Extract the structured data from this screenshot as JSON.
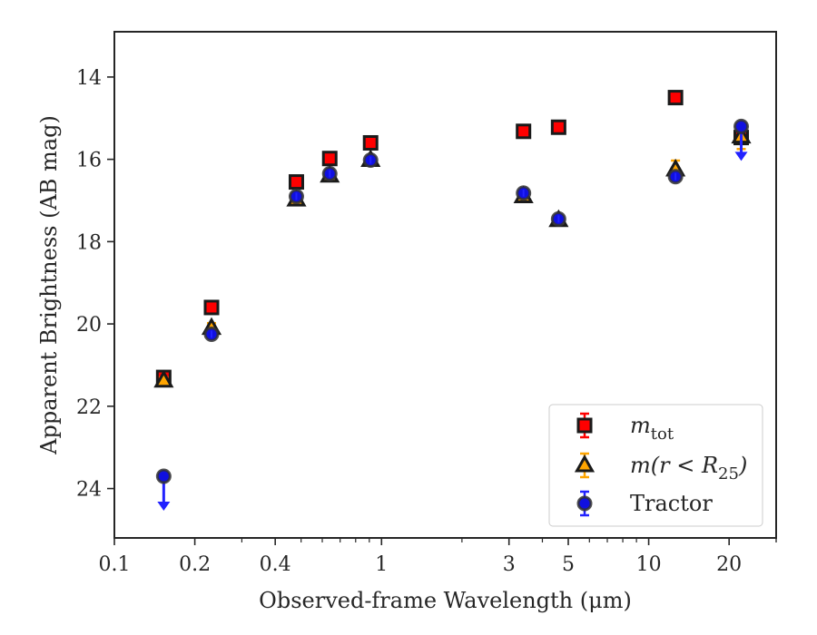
{
  "chart_data": {
    "type": "scatter",
    "xlabel": "Observed-frame Wavelength (μm)",
    "ylabel": "Apparent Brightness (AB mag)",
    "xscale": "log",
    "xlim": [
      0.1,
      30
    ],
    "ylim": [
      25.2,
      12.9
    ],
    "y_inverted": true,
    "grid": false,
    "x_ticks": [
      {
        "value": 0.1,
        "label": "0.1"
      },
      {
        "value": 0.2,
        "label": "0.2"
      },
      {
        "value": 0.4,
        "label": "0.4"
      },
      {
        "value": 1,
        "label": "1"
      },
      {
        "value": 3,
        "label": "3"
      },
      {
        "value": 5,
        "label": "5"
      },
      {
        "value": 10,
        "label": "10"
      },
      {
        "value": 20,
        "label": "20"
      }
    ],
    "y_ticks": [
      {
        "value": 14,
        "label": "14"
      },
      {
        "value": 16,
        "label": "16"
      },
      {
        "value": 18,
        "label": "18"
      },
      {
        "value": 20,
        "label": "20"
      },
      {
        "value": 22,
        "label": "22"
      },
      {
        "value": 24,
        "label": "24"
      }
    ],
    "legend": {
      "position": "lower-right",
      "entries": [
        {
          "series": "mtot"
        },
        {
          "series": "mr25"
        },
        {
          "series": "tractor"
        }
      ]
    },
    "series": [
      {
        "id": "mtot",
        "name_main": "m",
        "name_sub": "tot",
        "marker": "square",
        "face_color": "#ff0000",
        "edge_color": "#1a1a1a",
        "error_color": "#ff0000",
        "points": [
          {
            "x": 0.153,
            "y": 21.3,
            "err": 0.12
          },
          {
            "x": 0.231,
            "y": 19.6,
            "err": 0.05
          },
          {
            "x": 0.48,
            "y": 16.55,
            "err": 0.05
          },
          {
            "x": 0.64,
            "y": 15.98,
            "err": 0.05
          },
          {
            "x": 0.91,
            "y": 15.6,
            "err": 0.05
          },
          {
            "x": 3.4,
            "y": 15.32,
            "err": 0.05
          },
          {
            "x": 4.6,
            "y": 15.22,
            "err": 0.05
          },
          {
            "x": 12.6,
            "y": 14.5,
            "err": 0.05
          },
          {
            "x": 22.2,
            "y": 15.47,
            "err": 0.05
          }
        ]
      },
      {
        "id": "mr25",
        "name_main": "m(r < R",
        "name_sub": "25",
        "name_tail": ")",
        "marker": "triangle",
        "face_color": "#ffa500",
        "edge_color": "#1a1a1a",
        "error_color": "#ffa500",
        "points": [
          {
            "x": 0.153,
            "y": 21.38,
            "err": 0.08
          },
          {
            "x": 0.231,
            "y": 20.1,
            "err": 0.12
          },
          {
            "x": 0.48,
            "y": 16.98,
            "err": 0.05
          },
          {
            "x": 0.64,
            "y": 16.4,
            "err": 0.05
          },
          {
            "x": 0.91,
            "y": 16.02,
            "err": 0.05
          },
          {
            "x": 3.4,
            "y": 16.9,
            "err": 0.05
          },
          {
            "x": 4.6,
            "y": 17.48,
            "err": 0.05
          },
          {
            "x": 12.6,
            "y": 16.25,
            "err": 0.22
          },
          {
            "x": 22.2,
            "y": 15.45,
            "err": 0.3
          }
        ]
      },
      {
        "id": "tractor",
        "name_main": "Tractor",
        "marker": "circle",
        "face_color": "#1010e0",
        "edge_color": "#333333",
        "error_color": "#2222ff",
        "points": [
          {
            "x": 0.153,
            "y": 23.7,
            "upper_limit": true
          },
          {
            "x": 0.231,
            "y": 20.25,
            "err": 0.05
          },
          {
            "x": 0.48,
            "y": 16.9,
            "err": 0.05
          },
          {
            "x": 0.64,
            "y": 16.35,
            "err": 0.05
          },
          {
            "x": 0.91,
            "y": 16.02,
            "err": 0.05
          },
          {
            "x": 3.4,
            "y": 16.82,
            "err": 0.05
          },
          {
            "x": 4.6,
            "y": 17.45,
            "err": 0.05
          },
          {
            "x": 12.6,
            "y": 16.42,
            "err": 0.05
          },
          {
            "x": 22.2,
            "y": 15.2,
            "upper_limit": true
          }
        ]
      }
    ]
  }
}
